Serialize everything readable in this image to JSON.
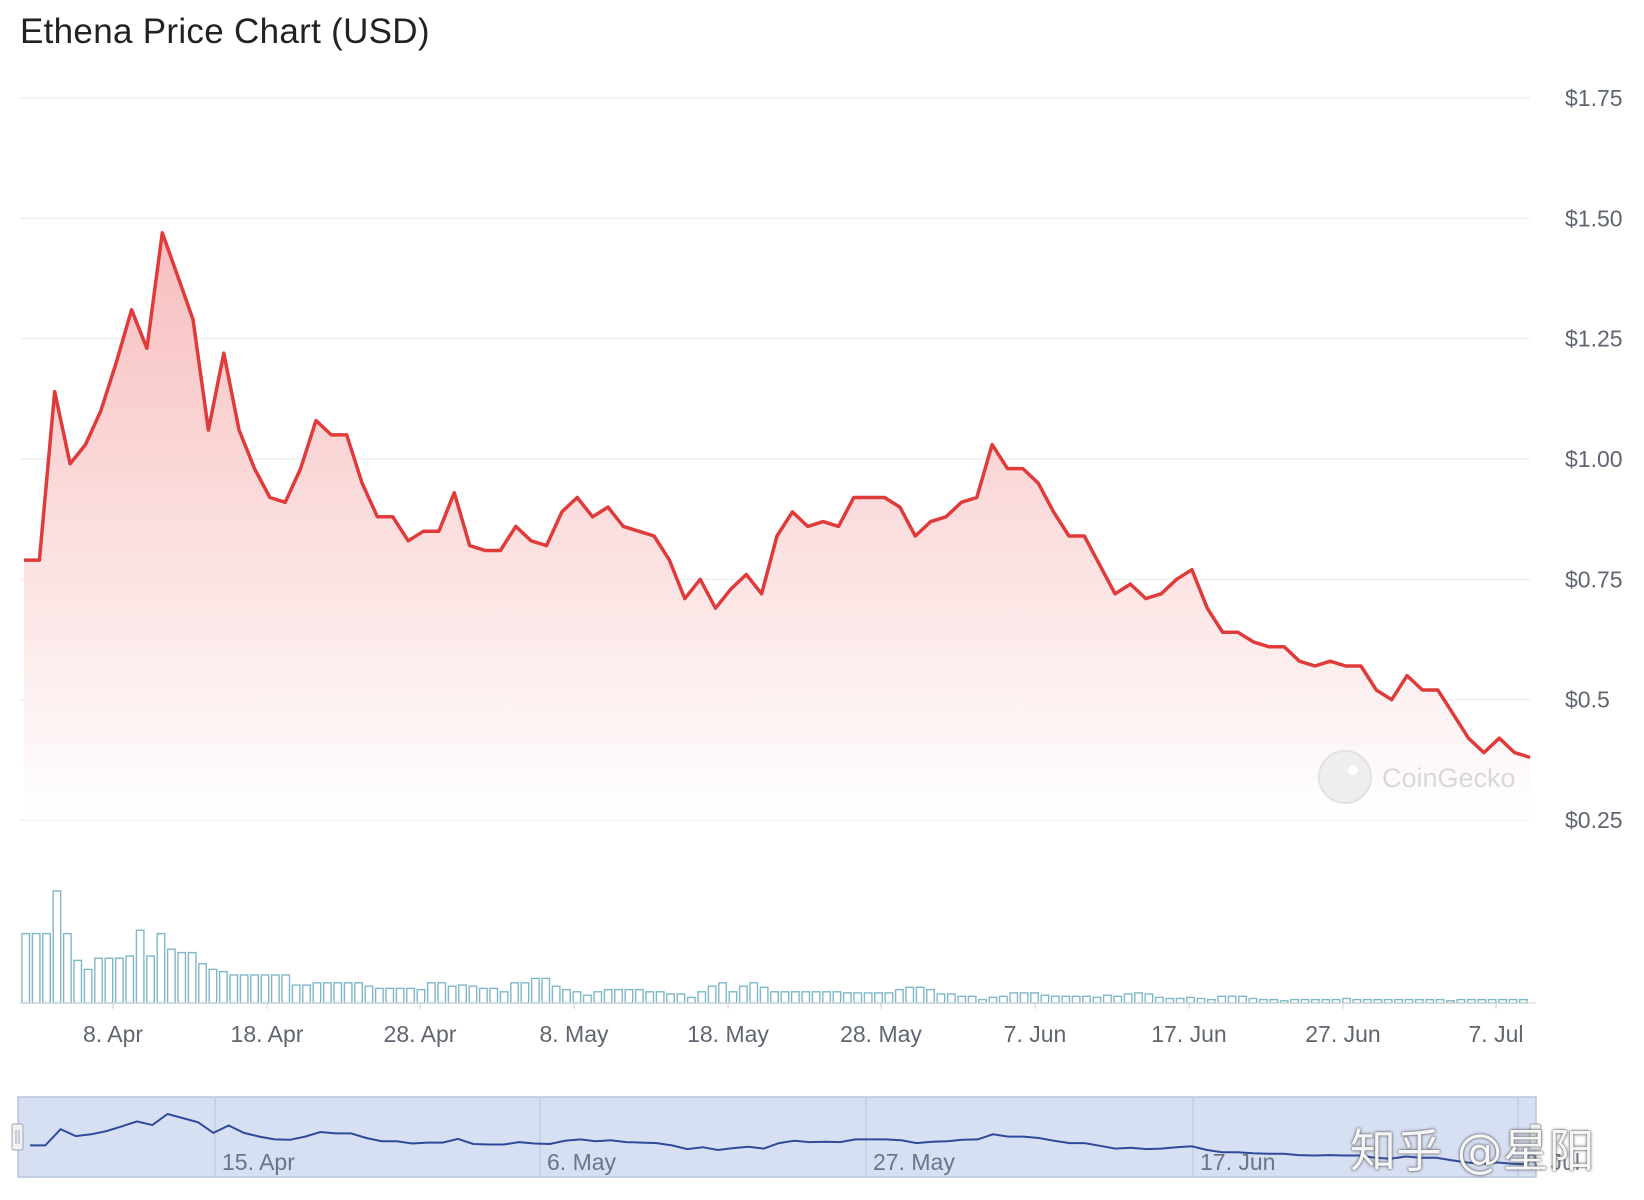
{
  "title": "Ethena Price Chart (USD)",
  "watermark": "CoinGecko",
  "site_watermark": "知乎 @星阳",
  "colors": {
    "price_line": "#e03b3b",
    "area_top": "#f9c9c9",
    "volume_bar": "#7fb8c8",
    "navigator_fill": "#d7e0f3",
    "navigator_line": "#2f4a9a",
    "grid": "#ececec"
  },
  "chart_data": {
    "type": "area",
    "currency": "USD",
    "y_ticks": [
      "$0.25",
      "$0.5",
      "$0.75",
      "$1.00",
      "$1.25",
      "$1.50",
      "$1.75"
    ],
    "ylim": [
      0.25,
      1.75
    ],
    "x_ticks": [
      "8. Apr",
      "18. Apr",
      "28. Apr",
      "8. May",
      "18. May",
      "28. May",
      "7. Jun",
      "17. Jun",
      "27. Jun",
      "7. Jul"
    ],
    "price": [
      0.79,
      0.79,
      1.14,
      0.99,
      1.03,
      1.1,
      1.2,
      1.31,
      1.23,
      1.47,
      1.38,
      1.29,
      1.06,
      1.22,
      1.06,
      0.98,
      0.92,
      0.91,
      0.98,
      1.08,
      1.05,
      1.05,
      0.95,
      0.88,
      0.88,
      0.83,
      0.85,
      0.85,
      0.93,
      0.82,
      0.81,
      0.81,
      0.86,
      0.83,
      0.82,
      0.89,
      0.92,
      0.88,
      0.9,
      0.86,
      0.85,
      0.84,
      0.79,
      0.71,
      0.75,
      0.69,
      0.73,
      0.76,
      0.72,
      0.84,
      0.89,
      0.86,
      0.87,
      0.86,
      0.92,
      0.92,
      0.92,
      0.9,
      0.84,
      0.87,
      0.88,
      0.91,
      0.92,
      1.03,
      0.98,
      0.98,
      0.95,
      0.89,
      0.84,
      0.84,
      0.78,
      0.72,
      0.74,
      0.71,
      0.72,
      0.75,
      0.77,
      0.69,
      0.64,
      0.64,
      0.62,
      0.61,
      0.61,
      0.58,
      0.57,
      0.58,
      0.57,
      0.57,
      0.52,
      0.5,
      0.55,
      0.52,
      0.52,
      0.47,
      0.42,
      0.39,
      0.42,
      0.39,
      0.38
    ],
    "volume": [
      62,
      62,
      62,
      100,
      62,
      38,
      30,
      40,
      40,
      40,
      42,
      65,
      42,
      62,
      48,
      45,
      45,
      35,
      30,
      28,
      25,
      25,
      25,
      25,
      25,
      25,
      16,
      16,
      18,
      18,
      18,
      18,
      18,
      15,
      13,
      13,
      13,
      13,
      12,
      18,
      18,
      15,
      16,
      15,
      13,
      13,
      10,
      18,
      18,
      22,
      22,
      15,
      12,
      10,
      7,
      10,
      12,
      12,
      12,
      12,
      10,
      10,
      8,
      8,
      5,
      10,
      15,
      18,
      10,
      15,
      18,
      14,
      10,
      10,
      10,
      10,
      10,
      10,
      10,
      9,
      9,
      9,
      9,
      9,
      12,
      14,
      14,
      12,
      8,
      8,
      6,
      6,
      3,
      5,
      6,
      9,
      9,
      9,
      7,
      6,
      6,
      6,
      6,
      5,
      7,
      6,
      8,
      9,
      8,
      5,
      4,
      4,
      5,
      4,
      3,
      6,
      6,
      6,
      4,
      3,
      3,
      2,
      3,
      3,
      3,
      3,
      3,
      4,
      3,
      3,
      3,
      3,
      3,
      3,
      3,
      3,
      3,
      2,
      3,
      3,
      3,
      3,
      3,
      3,
      3
    ],
    "navigator_x_ticks": [
      "15. Apr",
      "6. May",
      "27. May",
      "17. Jun",
      "8. Jul"
    ]
  }
}
